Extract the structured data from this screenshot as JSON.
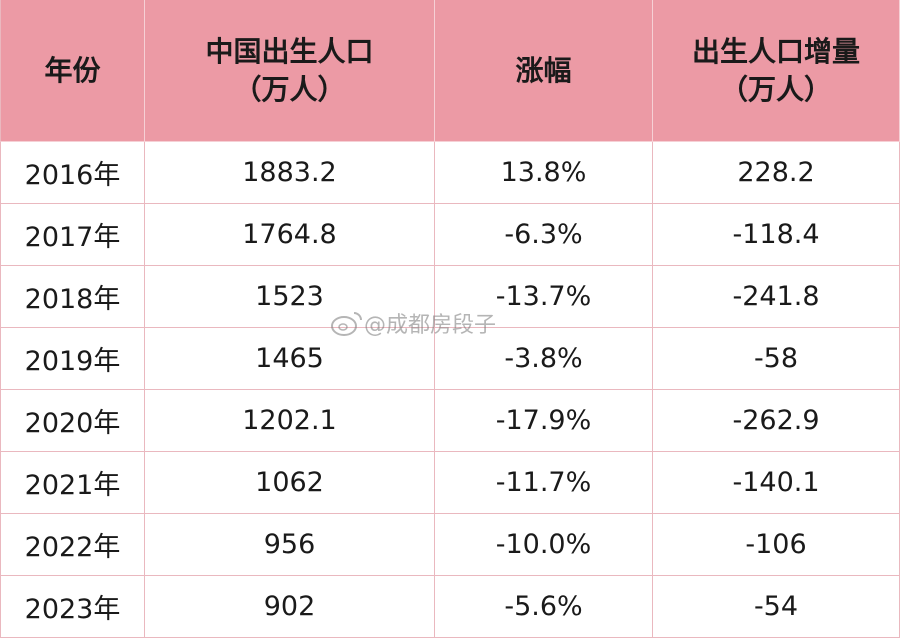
{
  "table": {
    "header": [
      [
        "年份"
      ],
      [
        "中国出生人口",
        "（万人）"
      ],
      [
        "涨幅"
      ],
      [
        "出生人口增量",
        "（万人）"
      ]
    ],
    "rows": [
      [
        "2016年",
        "1883.2",
        "13.8%",
        "228.2"
      ],
      [
        "2017年",
        "1764.8",
        "-6.3%",
        "-118.4"
      ],
      [
        "2018年",
        "1523",
        "-13.7%",
        "-241.8"
      ],
      [
        "2019年",
        "1465",
        "-3.8%",
        "-58"
      ],
      [
        "2020年",
        "1202.1",
        "-17.9%",
        "-262.9"
      ],
      [
        "2021年",
        "1062",
        "-11.7%",
        "-140.1"
      ],
      [
        "2022年",
        "956",
        "-10.0%",
        "-106"
      ],
      [
        "2023年",
        "902",
        "-5.6%",
        "-54"
      ]
    ]
  },
  "watermark": "@成都房段子"
}
